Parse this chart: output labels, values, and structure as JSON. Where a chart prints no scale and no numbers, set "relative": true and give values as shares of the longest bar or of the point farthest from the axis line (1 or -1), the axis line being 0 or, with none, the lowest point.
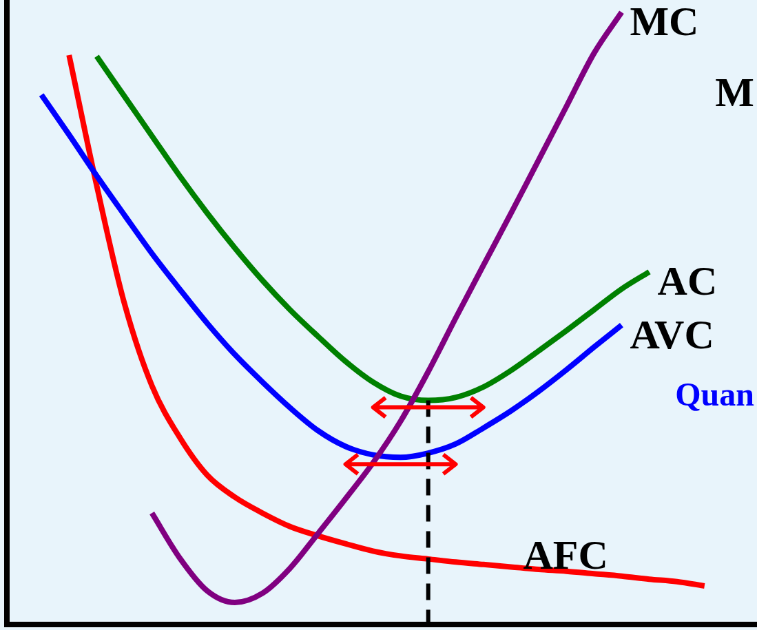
{
  "chart_data": {
    "type": "line",
    "relative": true,
    "legend": false,
    "grid": false,
    "marker": "none",
    "line_style": "solid",
    "categories": [
      null,
      null,
      null,
      null,
      null,
      null,
      null,
      null,
      null,
      null,
      null,
      null,
      null,
      null,
      null,
      null,
      null,
      null,
      null,
      null,
      null,
      null,
      null,
      null,
      null
    ],
    "series": [
      {
        "name": "MC",
        "color": "#800080",
        "values": [
          null,
          null,
          null,
          null,
          0.182,
          0.109,
          0.055,
          0.036,
          0.051,
          0.092,
          0.148,
          0.205,
          0.264,
          0.332,
          0.413,
          0.501,
          0.587,
          0.672,
          0.759,
          0.846,
          0.933,
          1,
          null,
          null,
          null
        ]
      },
      {
        "name": "AC",
        "color": "#008000",
        "values": [
          null,
          null,
          0.928,
          0.863,
          0.798,
          0.733,
          0.672,
          0.615,
          0.562,
          0.514,
          0.471,
          0.43,
          0.396,
          0.373,
          0.366,
          0.371,
          0.388,
          0.415,
          0.447,
          0.48,
          0.514,
          0.548,
          0.576,
          null,
          null
        ]
      },
      {
        "name": "AVC",
        "color": "#0000ff",
        "values": [
          0.865,
          0.8,
          0.733,
          0.669,
          0.606,
          0.548,
          0.492,
          0.441,
          0.396,
          0.354,
          0.317,
          0.291,
          0.277,
          0.273,
          0.28,
          0.295,
          0.321,
          0.349,
          0.381,
          0.416,
          0.453,
          0.489,
          null,
          null,
          null
        ]
      },
      {
        "name": "AFC",
        "color": "#ff0000",
        "values": [
          null,
          0.93,
          0.717,
          0.525,
          0.39,
          0.306,
          0.244,
          0.208,
          0.182,
          0.16,
          0.145,
          0.132,
          0.12,
          0.112,
          0.107,
          0.102,
          0.098,
          0.094,
          0.09,
          0.087,
          0.083,
          0.079,
          0.074,
          0.07,
          0.063
        ]
      }
    ],
    "annotations": [
      "M",
      "Quan"
    ]
  }
}
